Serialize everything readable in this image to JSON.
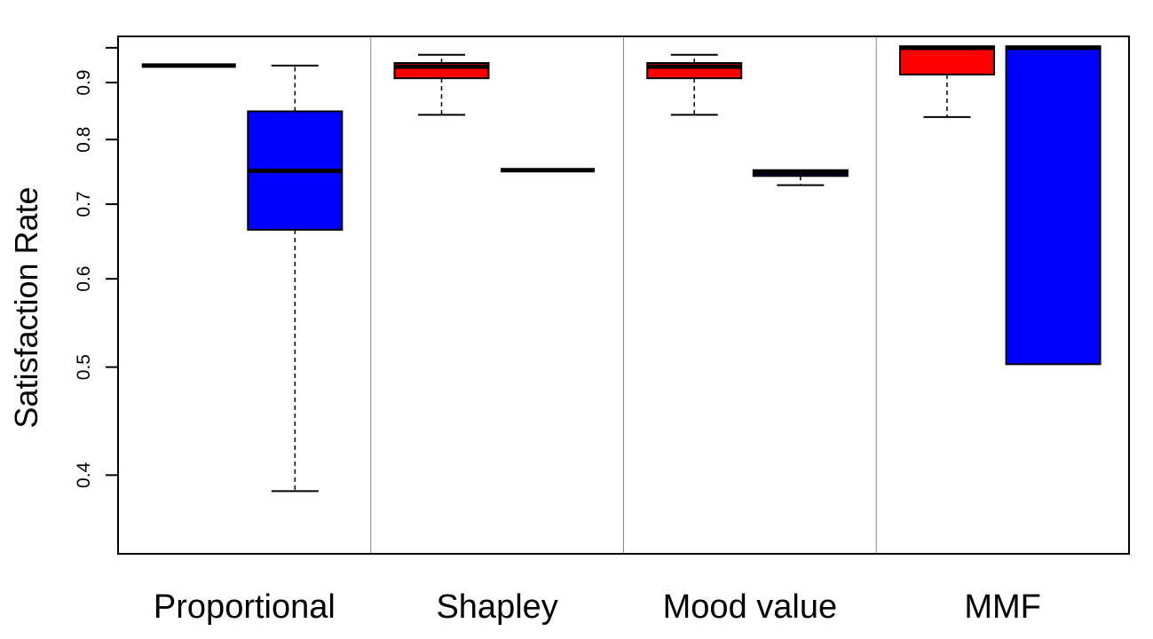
{
  "chart_data": {
    "type": "boxplot",
    "title": "",
    "xlabel": "",
    "ylabel": "Satisfaction Rate",
    "yscale": "log",
    "ylim": [
      0.34,
      0.99
    ],
    "yticks": [
      0.4,
      0.5,
      0.6,
      0.7,
      0.8,
      0.9
    ],
    "ytick_labels": [
      "0.4",
      "0.5",
      "0.6",
      "0.7",
      "0.8",
      "0.9"
    ],
    "groups": [
      "Proportional",
      "Shapley",
      "Mood value",
      "MMF"
    ],
    "series": [
      {
        "name": "red",
        "color": "#ff0000"
      },
      {
        "name": "blue",
        "color": "#0000ff"
      }
    ],
    "boxes": [
      {
        "group": "Proportional",
        "series": "red",
        "color": "#ff0000",
        "whisker_low": 0.932,
        "q1": 0.932,
        "median": 0.932,
        "q3": 0.932,
        "whisker_high": 0.932
      },
      {
        "group": "Proportional",
        "series": "blue",
        "color": "#0000ff",
        "whisker_low": 0.387,
        "q1": 0.664,
        "median": 0.75,
        "q3": 0.848,
        "whisker_high": 0.932
      },
      {
        "group": "Shapley",
        "series": "red",
        "color": "#ff0000",
        "whisker_low": 0.842,
        "q1": 0.908,
        "median": 0.93,
        "q3": 0.937,
        "whisker_high": 0.953
      },
      {
        "group": "Shapley",
        "series": "blue",
        "color": "#0000ff",
        "whisker_low": 0.751,
        "q1": 0.751,
        "median": 0.751,
        "q3": 0.751,
        "whisker_high": 0.751
      },
      {
        "group": "Mood value",
        "series": "red",
        "color": "#ff0000",
        "whisker_low": 0.842,
        "q1": 0.908,
        "median": 0.93,
        "q3": 0.937,
        "whisker_high": 0.953
      },
      {
        "group": "Mood value",
        "series": "blue",
        "color": "#0000ff",
        "whisker_low": 0.728,
        "q1": 0.742,
        "median": 0.747,
        "q3": 0.751,
        "whisker_high": 0.751
      },
      {
        "group": "MMF",
        "series": "red",
        "color": "#ff0000",
        "whisker_low": 0.838,
        "q1": 0.915,
        "median": 0.967,
        "q3": 0.97,
        "whisker_high": 0.97
      },
      {
        "group": "MMF",
        "series": "blue",
        "color": "#0000ff",
        "whisker_low": 0.503,
        "q1": 0.503,
        "median": 0.967,
        "q3": 0.97,
        "whisker_high": 0.97
      }
    ]
  }
}
